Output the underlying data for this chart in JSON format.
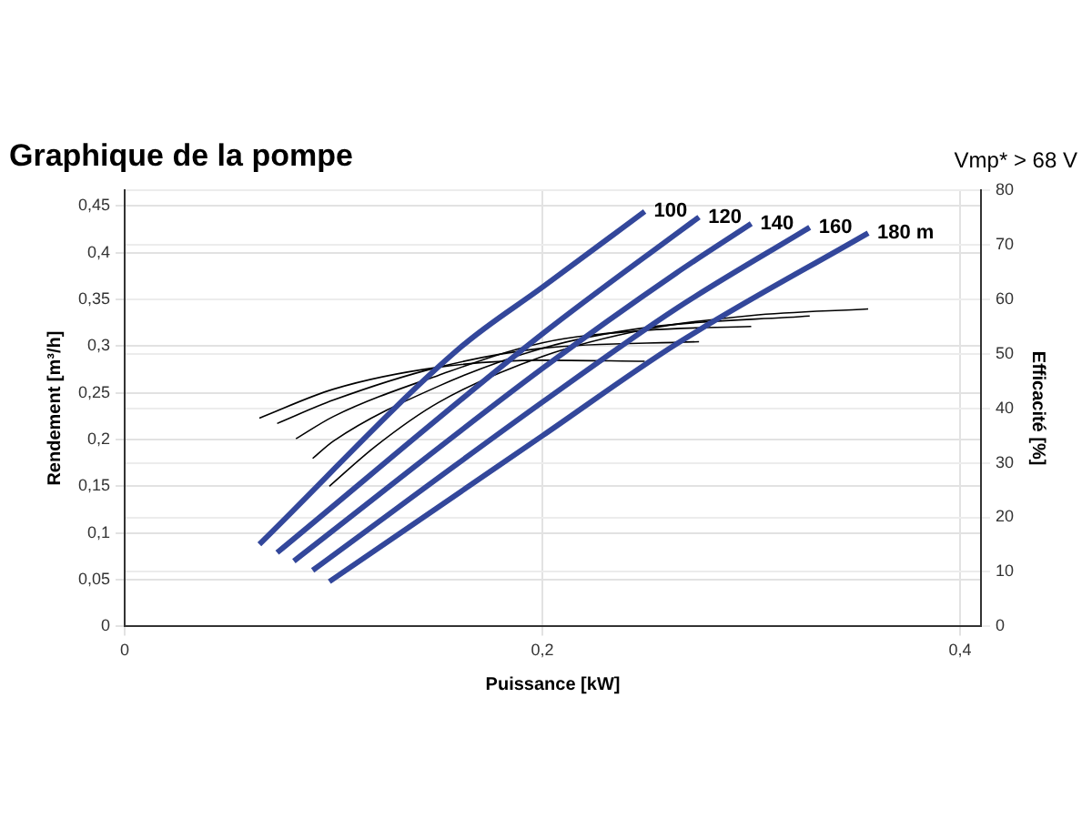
{
  "chart_data": {
    "type": "line",
    "title": "Graphique de la pompe",
    "subtitle": "Vmp* > 68 V",
    "xlabel": "Puissance [kW]",
    "ylabel": "Rendement [m³/h]",
    "y2label": "Efficacité [%]",
    "xlim": [
      0,
      0.41
    ],
    "xticks": [
      {
        "value": 0,
        "label": "0"
      },
      {
        "value": 0.2,
        "label": "0,2"
      },
      {
        "value": 0.4,
        "label": "0,4"
      }
    ],
    "ylim": [
      0,
      0.467
    ],
    "yticks": [
      {
        "value": 0,
        "label": "0"
      },
      {
        "value": 0.05,
        "label": "0,05"
      },
      {
        "value": 0.1,
        "label": "0,1"
      },
      {
        "value": 0.15,
        "label": "0,15"
      },
      {
        "value": 0.2,
        "label": "0,2"
      },
      {
        "value": 0.25,
        "label": "0,25"
      },
      {
        "value": 0.3,
        "label": "0,3"
      },
      {
        "value": 0.35,
        "label": "0,35"
      },
      {
        "value": 0.4,
        "label": "0,4"
      },
      {
        "value": 0.45,
        "label": "0,45"
      }
    ],
    "y2lim": [
      0,
      80
    ],
    "y2ticks": [
      0,
      10,
      20,
      30,
      40,
      50,
      60,
      70,
      80
    ],
    "grid": true,
    "legend": false,
    "marker": "none",
    "line_style": "solid",
    "series": [
      {
        "name": "100",
        "color": "#33479b",
        "x": [
          0.0645,
          0.161,
          0.2,
          0.249
        ],
        "values": [
          0.088,
          0.299,
          0.363,
          0.444
        ]
      },
      {
        "name": "120",
        "color": "#33479b",
        "x": [
          0.073,
          0.2,
          0.264,
          0.275
        ],
        "values": [
          0.079,
          0.313,
          0.42,
          0.438
        ]
      },
      {
        "name": "140",
        "color": "#33479b",
        "x": [
          0.081,
          0.2,
          0.264,
          0.3
        ],
        "values": [
          0.07,
          0.276,
          0.378,
          0.431
        ]
      },
      {
        "name": "160",
        "color": "#33479b",
        "x": [
          0.09,
          0.2,
          0.264,
          0.328
        ],
        "values": [
          0.06,
          0.24,
          0.34,
          0.427
        ]
      },
      {
        "name": "180 m",
        "color": "#33479b",
        "x": [
          0.098,
          0.2,
          0.264,
          0.356
        ],
        "values": [
          0.048,
          0.204,
          0.302,
          0.421
        ]
      },
      {
        "color": "#000000",
        "axis": "y2",
        "x": [
          0.0645,
          0.1,
          0.15,
          0.2,
          0.249
        ],
        "values": [
          38.2,
          43.5,
          47.5,
          48.8,
          48.6
        ]
      },
      {
        "color": "#000000",
        "axis": "y2",
        "x": [
          0.073,
          0.1,
          0.15,
          0.2,
          0.275
        ],
        "values": [
          37.2,
          41.5,
          47.5,
          51,
          52.2
        ]
      },
      {
        "color": "#000000",
        "axis": "y2",
        "x": [
          0.082,
          0.1,
          0.15,
          0.2,
          0.25,
          0.3
        ],
        "values": [
          34.4,
          38.5,
          46,
          52,
          54.3,
          55
        ]
      },
      {
        "color": "#000000",
        "axis": "y2",
        "x": [
          0.09,
          0.1,
          0.15,
          0.2,
          0.25,
          0.328
        ],
        "values": [
          30.8,
          34,
          44,
          51,
          54.8,
          56.9
        ]
      },
      {
        "color": "#000000",
        "axis": "y2",
        "x": [
          0.098,
          0.12,
          0.15,
          0.2,
          0.25,
          0.3,
          0.356
        ],
        "values": [
          25.7,
          33,
          41,
          49.5,
          54.5,
          57,
          58.2
        ]
      }
    ]
  }
}
